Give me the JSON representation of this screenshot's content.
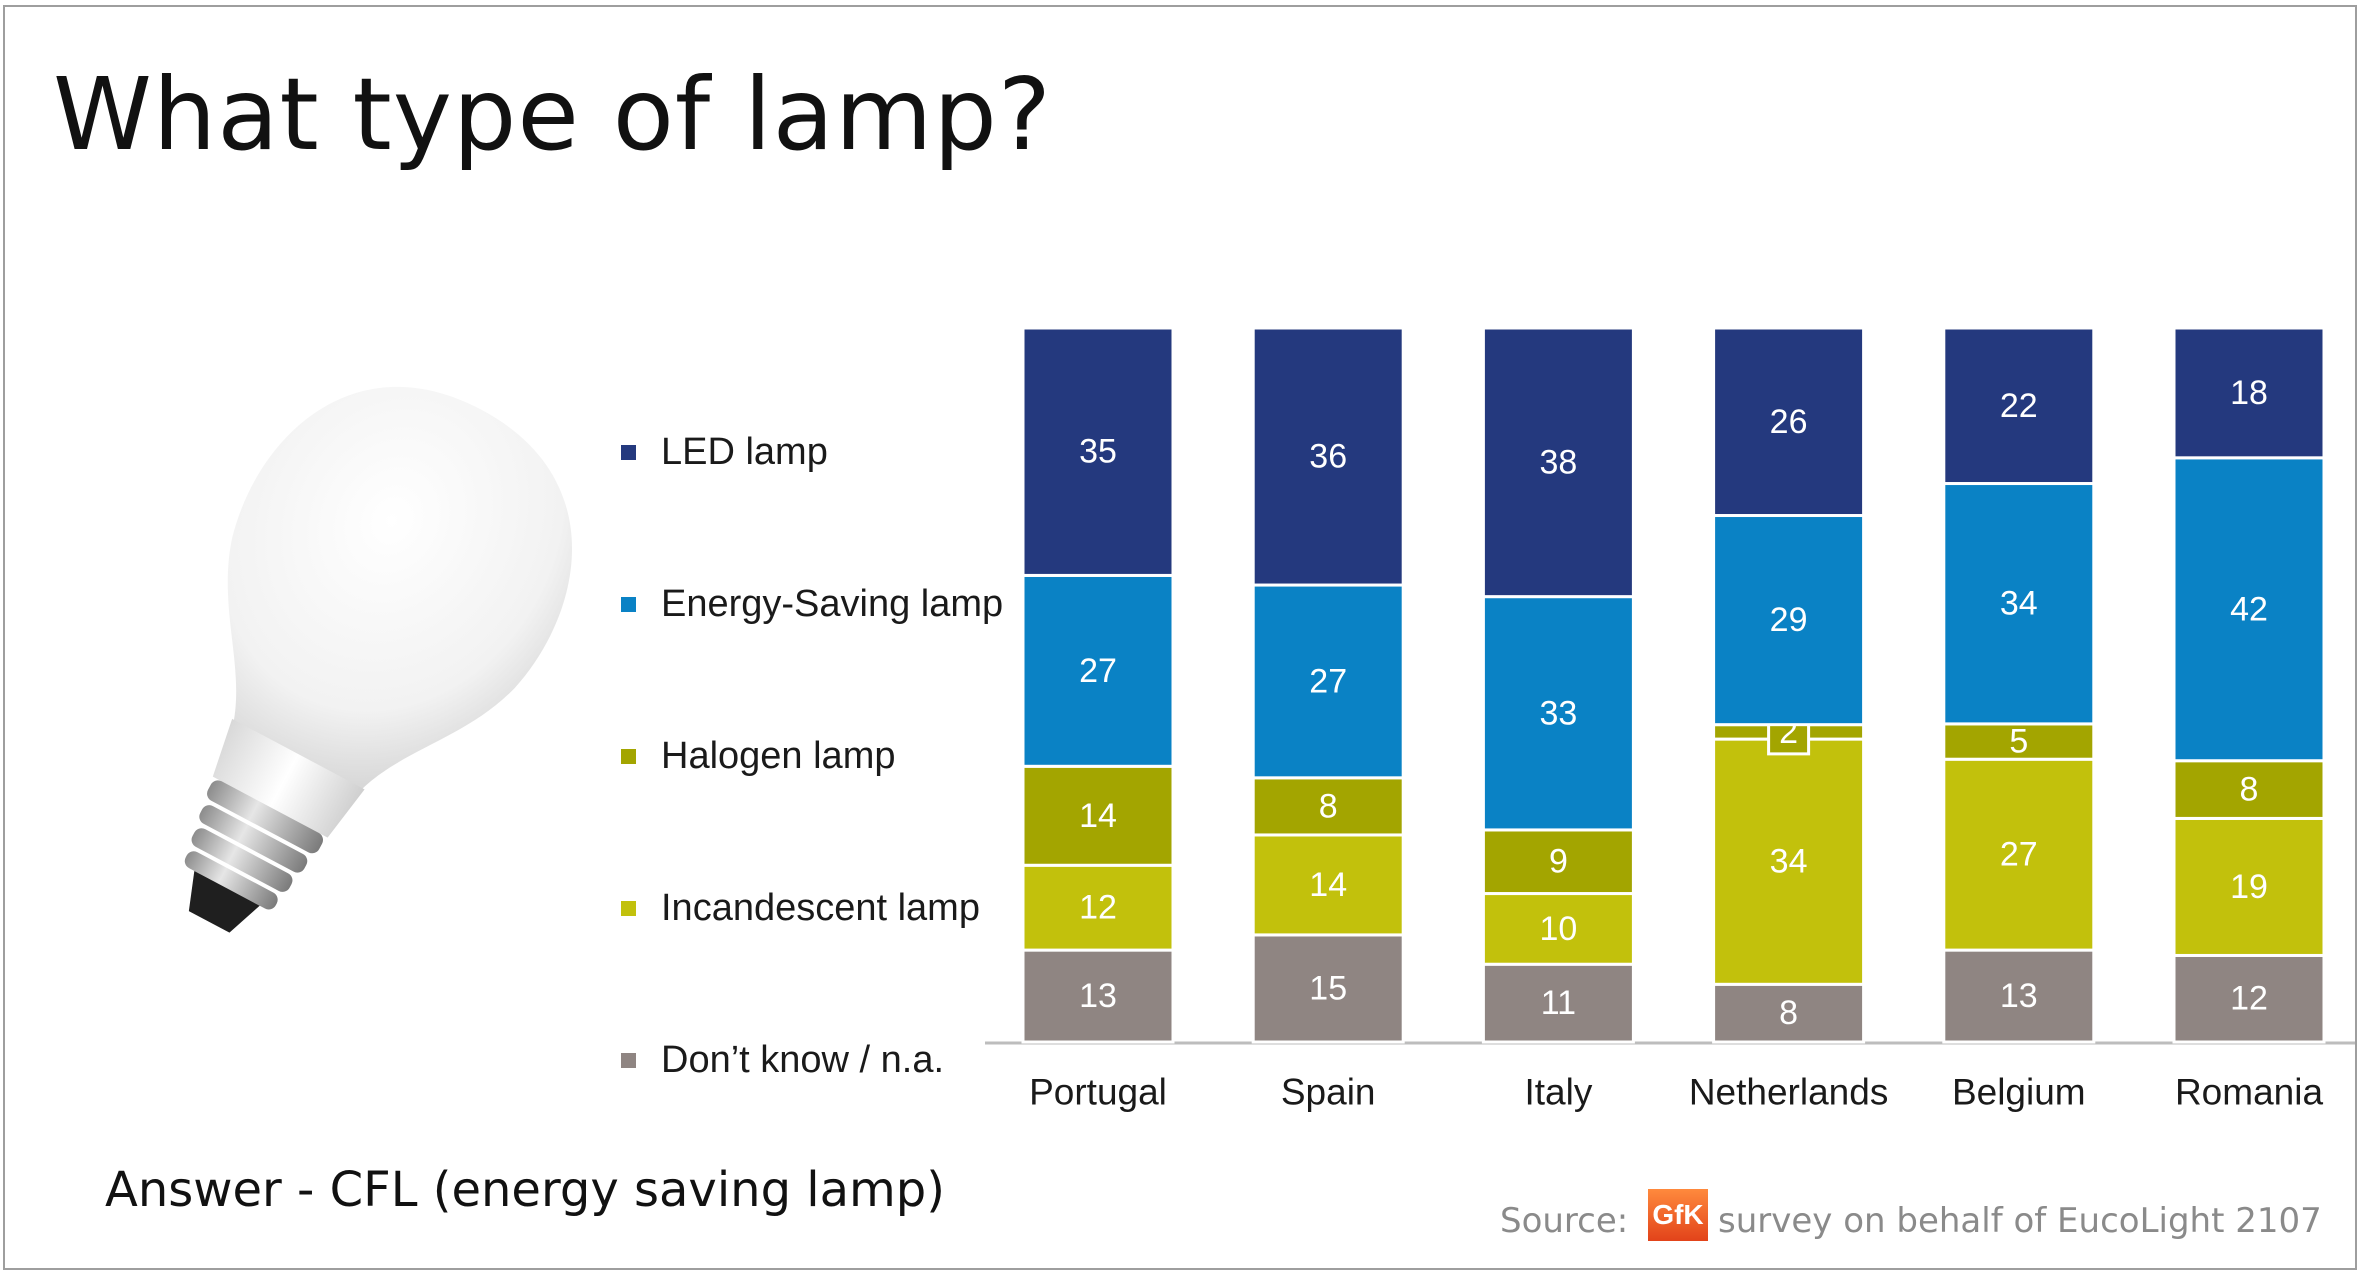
{
  "title": "What type of lamp?",
  "answer": "Answer - CFL (energy saving lamp)",
  "source": {
    "label": "Source:",
    "logo_text": "GfK",
    "text": "survey on behalf of EucoLight 2107"
  },
  "chart_data": {
    "type": "bar",
    "stacked": true,
    "categories": [
      "Portugal",
      "Spain",
      "Italy",
      "Netherlands",
      "Belgium",
      "Romania"
    ],
    "series": [
      {
        "name": "LED lamp",
        "color": "#24397e",
        "values": [
          35,
          36,
          38,
          26,
          22,
          18
        ]
      },
      {
        "name": "Energy-Saving lamp",
        "color": "#0a82c5",
        "values": [
          27,
          27,
          33,
          29,
          34,
          42
        ]
      },
      {
        "name": "Halogen lamp",
        "color": "#a3a500",
        "values": [
          14,
          8,
          9,
          2,
          5,
          8
        ]
      },
      {
        "name": "Incandescent lamp",
        "color": "#c2c10c",
        "values": [
          12,
          14,
          10,
          34,
          27,
          19
        ]
      },
      {
        "name": "Don’t know / n.a.",
        "color": "#8f8582",
        "values": [
          13,
          15,
          11,
          8,
          13,
          12
        ]
      }
    ],
    "legend_position": "left",
    "grid": false
  }
}
